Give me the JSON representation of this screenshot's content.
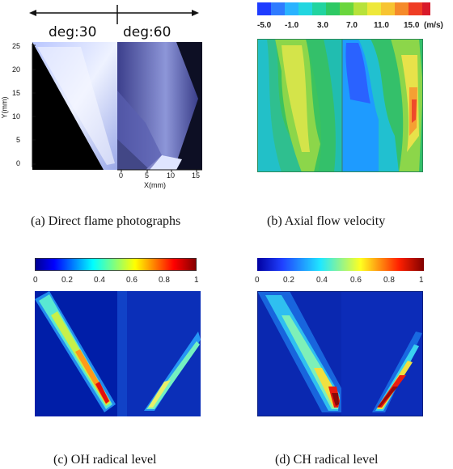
{
  "panel_a": {
    "left_label": "deg:30",
    "right_label": "deg:60",
    "y_axis_label": "Y(mm)",
    "x_axis_label": "X(mm)",
    "y_ticks": [
      "25",
      "20",
      "15",
      "10",
      "5",
      "0"
    ],
    "x_ticks": [
      "0",
      "5",
      "10",
      "15"
    ],
    "caption": "(a) Direct flame photographs"
  },
  "panel_b": {
    "colorbar_ticks": [
      "-5.0",
      "-1.0",
      "3.0",
      "7.0",
      "11.0",
      "15.0"
    ],
    "colorbar_unit": "(m/s)",
    "caption": "(b) Axial flow velocity"
  },
  "panel_c": {
    "colorbar_ticks": [
      "0",
      "0.2",
      "0.4",
      "0.6",
      "0.8",
      "1"
    ],
    "caption": "(c) OH radical level"
  },
  "panel_d": {
    "colorbar_ticks": [
      "0",
      "0.2",
      "0.4",
      "0.6",
      "0.8",
      "1"
    ],
    "caption": "(d) CH radical level"
  },
  "colors": {
    "jet_dark_blue": "#00008f",
    "jet_red": "#8b0000",
    "velocity_green": "#4cc96a",
    "velocity_yellow": "#e8e84a",
    "flame_white_blue": "#e6ecff"
  }
}
